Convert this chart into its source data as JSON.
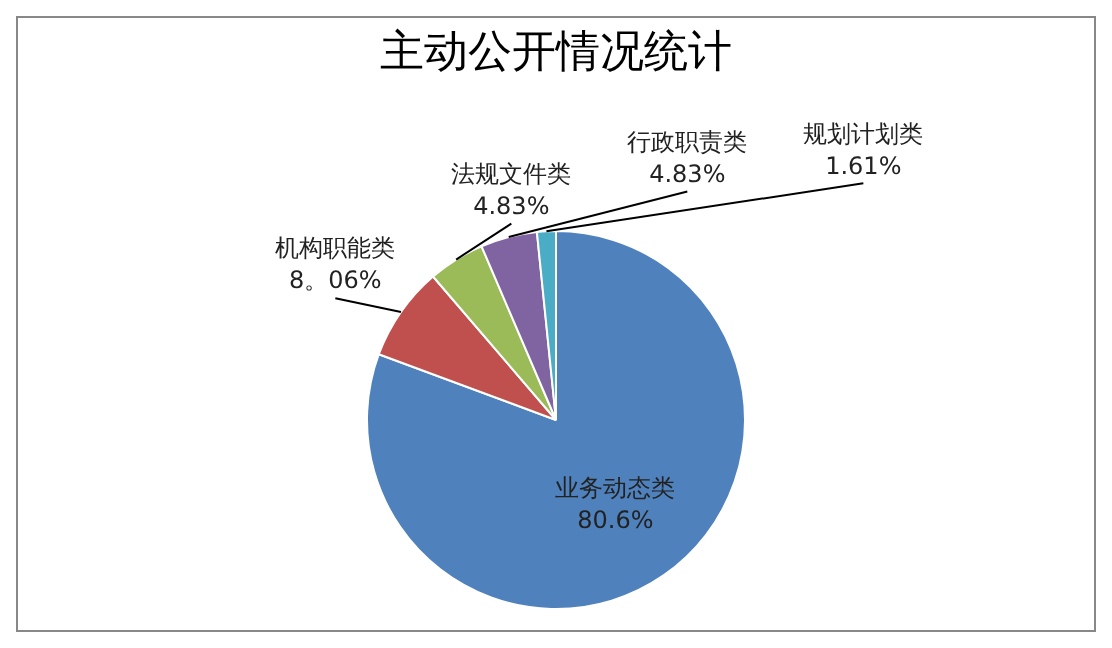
{
  "chart_data": {
    "type": "pie",
    "title": "主动公开情况统计",
    "categories": [
      "业务动态类",
      "机构职能类",
      "法规文件类",
      "行政职责类",
      "规划计划类"
    ],
    "values": [
      80.6,
      8.06,
      4.83,
      4.83,
      1.61
    ],
    "colors": [
      "#4f81bd",
      "#c0504d",
      "#9bbb59",
      "#8064a2",
      "#4bacc6"
    ],
    "value_labels": [
      "80.6%",
      "8。06%",
      "4.83%",
      "4.83%",
      "1.61%"
    ],
    "legend": false
  }
}
